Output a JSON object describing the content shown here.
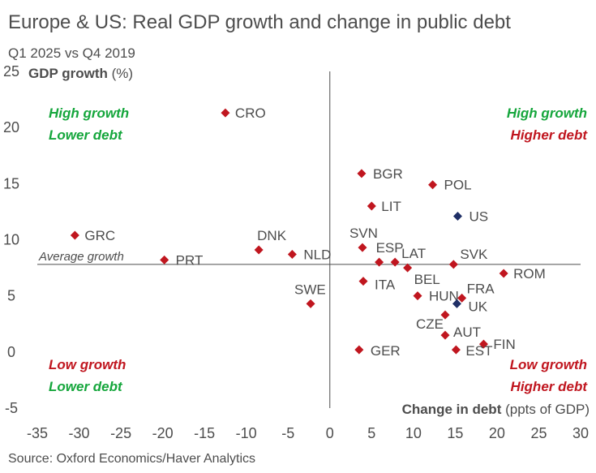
{
  "header": {
    "title": "Europe & US: Real GDP growth and change in public debt",
    "subtitle": "Q1 2025 vs Q4 2019"
  },
  "footer": {
    "source": "Source: Oxford Economics/Haver Analytics"
  },
  "colors": {
    "europe": "#c0161f",
    "us": "#1f2f66",
    "green": "#15a63c",
    "red": "#c0161f",
    "text": "#4d4d4d",
    "axis": "#4d4d4d"
  },
  "chart_data": {
    "type": "scatter",
    "xlim": [
      -35,
      30
    ],
    "ylim": [
      -5,
      25
    ],
    "xticks": [
      "-35",
      "-30",
      "-25",
      "-20",
      "-15",
      "-10",
      "-5",
      "0",
      "5",
      "10",
      "15",
      "20",
      "25",
      "30"
    ],
    "yticks": [
      "-5",
      "0",
      "5",
      "10",
      "15",
      "20",
      "25"
    ],
    "ylabel_bold": "GDP growth",
    "ylabel_unit": " (%)",
    "xlabel_bold": "Change in debt",
    "xlabel_unit": " (ppts of GDP)",
    "average_growth": 7.8,
    "average_label": "Average growth",
    "quadrants": {
      "top_left": [
        "High growth",
        "Lower debt"
      ],
      "top_right": [
        "High growth",
        "Higher debt"
      ],
      "bottom_left": [
        "Low growth",
        "Lower debt"
      ],
      "bottom_right": [
        "Low growth",
        "Higher debt"
      ]
    },
    "series": [
      {
        "name": "Europe",
        "points": [
          {
            "label": "CRO",
            "x": -12.5,
            "y": 21.3
          },
          {
            "label": "BGR",
            "x": 3.8,
            "y": 15.9
          },
          {
            "label": "POL",
            "x": 12.3,
            "y": 14.9
          },
          {
            "label": "LIT",
            "x": 5.0,
            "y": 13.0
          },
          {
            "label": "GRC",
            "x": -30.5,
            "y": 10.4
          },
          {
            "label": "DNK",
            "x": -8.5,
            "y": 9.1
          },
          {
            "label": "SVN",
            "x": 3.9,
            "y": 9.3
          },
          {
            "label": "NLD",
            "x": -4.5,
            "y": 8.7
          },
          {
            "label": "PRT",
            "x": -19.8,
            "y": 8.2
          },
          {
            "label": "ESP",
            "x": 5.9,
            "y": 8.0
          },
          {
            "label": "LAT",
            "x": 7.8,
            "y": 8.0
          },
          {
            "label": "SVK",
            "x": 14.8,
            "y": 7.8
          },
          {
            "label": "BEL",
            "x": 9.3,
            "y": 7.5
          },
          {
            "label": "ROM",
            "x": 20.8,
            "y": 7.0
          },
          {
            "label": "ITA",
            "x": 4.0,
            "y": 6.3
          },
          {
            "label": "FRA",
            "x": 15.8,
            "y": 4.8
          },
          {
            "label": "HUN",
            "x": 10.5,
            "y": 5.0
          },
          {
            "label": "SWE",
            "x": -2.3,
            "y": 4.3
          },
          {
            "label": "CZE",
            "x": 13.8,
            "y": 3.3
          },
          {
            "label": "AUT",
            "x": 13.8,
            "y": 1.5
          },
          {
            "label": "FIN",
            "x": 18.4,
            "y": 0.7
          },
          {
            "label": "GER",
            "x": 3.5,
            "y": 0.2
          },
          {
            "label": "EST",
            "x": 15.1,
            "y": 0.2
          }
        ]
      },
      {
        "name": "US",
        "points": [
          {
            "label": "US",
            "x": 15.3,
            "y": 12.1
          },
          {
            "label": "UK",
            "x": 15.2,
            "y": 4.3
          }
        ]
      }
    ]
  }
}
